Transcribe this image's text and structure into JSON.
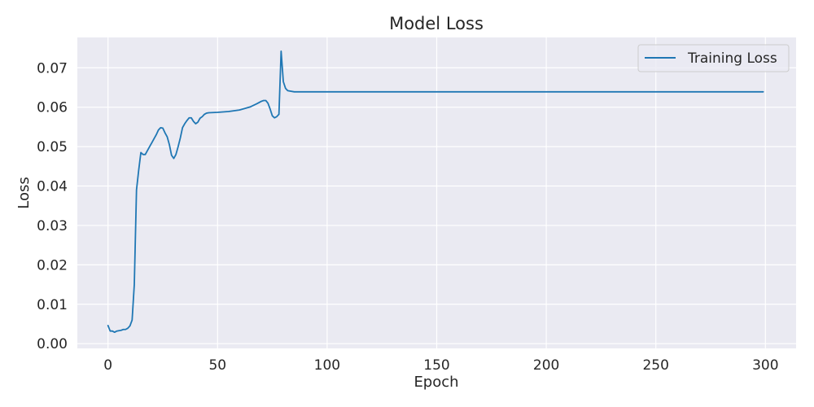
{
  "chart_data": {
    "type": "line",
    "title": "Model Loss",
    "xlabel": "Epoch",
    "ylabel": "Loss",
    "xlim": [
      -14,
      314
    ],
    "ylim": [
      -0.0012,
      0.0777
    ],
    "xticks": [
      0,
      50,
      100,
      150,
      200,
      250,
      300
    ],
    "xtick_labels": [
      "0",
      "50",
      "100",
      "150",
      "200",
      "250",
      "300"
    ],
    "yticks": [
      0.0,
      0.01,
      0.02,
      0.03,
      0.04,
      0.05,
      0.06,
      0.07
    ],
    "ytick_labels": [
      "0.00",
      "0.01",
      "0.02",
      "0.03",
      "0.04",
      "0.05",
      "0.06",
      "0.07"
    ],
    "grid": true,
    "legend_position": "top-right",
    "background_color": "#eaeaf2",
    "grid_color": "#ffffff",
    "series": [
      {
        "name": "Training Loss",
        "color": "#1f77b4",
        "x": [
          0,
          1,
          2,
          3,
          4,
          5,
          6,
          7,
          8,
          9,
          10,
          11,
          12,
          13,
          14,
          15,
          16,
          17,
          18,
          19,
          20,
          21,
          22,
          23,
          24,
          25,
          26,
          27,
          28,
          29,
          30,
          31,
          32,
          33,
          34,
          35,
          36,
          37,
          38,
          39,
          40,
          41,
          42,
          43,
          44,
          45,
          46,
          50,
          55,
          60,
          65,
          68,
          70,
          71,
          72,
          73,
          74,
          75,
          76,
          77,
          78,
          79,
          80,
          81,
          82,
          85,
          90,
          100,
          150,
          200,
          250,
          299
        ],
        "y": [
          0.0046,
          0.0032,
          0.0032,
          0.0029,
          0.0032,
          0.0033,
          0.0034,
          0.0036,
          0.0036,
          0.0039,
          0.0045,
          0.006,
          0.015,
          0.039,
          0.044,
          0.0485,
          0.048,
          0.048,
          0.049,
          0.05,
          0.051,
          0.052,
          0.053,
          0.0542,
          0.0548,
          0.0547,
          0.0535,
          0.0525,
          0.0505,
          0.0478,
          0.047,
          0.048,
          0.05,
          0.0522,
          0.0548,
          0.0558,
          0.0566,
          0.0573,
          0.0573,
          0.0564,
          0.0558,
          0.0562,
          0.0572,
          0.0576,
          0.0582,
          0.0585,
          0.0586,
          0.0587,
          0.0589,
          0.0593,
          0.0601,
          0.0609,
          0.0615,
          0.0617,
          0.0617,
          0.061,
          0.0595,
          0.0578,
          0.0573,
          0.0576,
          0.0582,
          0.0742,
          0.0665,
          0.0648,
          0.0642,
          0.0639,
          0.0639,
          0.0639,
          0.0639,
          0.0639,
          0.0639,
          0.0639
        ]
      }
    ]
  }
}
